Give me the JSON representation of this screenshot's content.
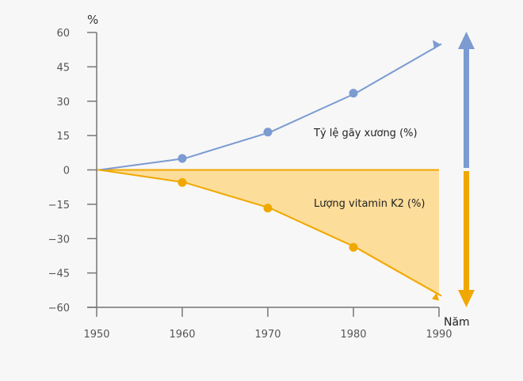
{
  "chart_data": {
    "type": "line",
    "ylabel": "%",
    "xlabel": "Năm",
    "x": [
      1950,
      1960,
      1970,
      1980,
      1990
    ],
    "xlim": [
      1950,
      1990
    ],
    "ylim": [
      -60,
      60
    ],
    "yticks": [
      60,
      45,
      30,
      15,
      0,
      -15,
      -30,
      -45,
      -60
    ],
    "ytick_labels": [
      "60",
      "45",
      "30",
      "15",
      "0",
      "−15",
      "−30",
      "−45",
      "−60"
    ],
    "xticks": [
      1950,
      1960,
      1970,
      1980,
      1990
    ],
    "grid": false,
    "series": [
      {
        "name": "Tỷ lệ gãy xương (%)",
        "values": [
          0,
          5,
          16.5,
          33.5,
          55
        ],
        "color": "#7b9bd1",
        "direction": "up"
      },
      {
        "name": "Lượng vitamin K2 (%)",
        "values": [
          0,
          -5.5,
          -16.7,
          -33.8,
          -55
        ],
        "color": "#f0a800",
        "fill": "#fdd98f",
        "direction": "down"
      }
    ]
  }
}
